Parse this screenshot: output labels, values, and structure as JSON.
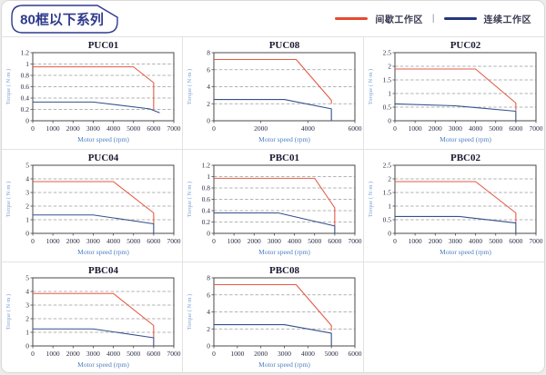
{
  "page": {
    "title": "80框以下系列"
  },
  "legend": {
    "separator": "|",
    "items": [
      {
        "label": "间歇工作区",
        "color": "#e54a31"
      },
      {
        "label": "连续工作区",
        "color": "#24387f"
      }
    ]
  },
  "colors": {
    "intermittent_line": "#e55a44",
    "continuous_line": "#35508c",
    "axis": "#4a4a4a",
    "grid": "#9a9a9a",
    "tick_text": "#2b2b45",
    "xlabel_text": "#4d7fc0",
    "ylabel_text": "#7ba0d4",
    "chart_title": "#1b1b32",
    "header_accent": "#2d3a8c"
  },
  "chart_data": [
    {
      "type": "line",
      "title": "PUC01",
      "xlabel": "Motor speed (rpm)",
      "ylabel": "Torque ( N·m )",
      "xlim": [
        0,
        7000
      ],
      "ylim": [
        0,
        1.2
      ],
      "xticks": [
        0,
        1000,
        2000,
        3000,
        4000,
        5000,
        6000,
        7000
      ],
      "yticks": [
        0,
        0.2,
        0.4,
        0.6,
        0.8,
        1,
        1.2
      ],
      "grid": "dashed-horizontal",
      "legend_position": "none",
      "series": [
        {
          "name": "间歇工作区",
          "color": "#e55a44",
          "points": [
            [
              0,
              0.95
            ],
            [
              5000,
              0.95
            ],
            [
              6000,
              0.67
            ],
            [
              6000,
              0.2
            ]
          ]
        },
        {
          "name": "连续工作区",
          "color": "#35508c",
          "points": [
            [
              0,
              0.33
            ],
            [
              3000,
              0.33
            ],
            [
              5800,
              0.21
            ],
            [
              6300,
              0.14
            ]
          ]
        }
      ]
    },
    {
      "type": "line",
      "title": "PUC08",
      "xlabel": "Motor speed (rpm)",
      "ylabel": "Torque ( N·m )",
      "xlim": [
        0,
        6000
      ],
      "ylim": [
        0,
        8
      ],
      "xticks": [
        0,
        2000,
        4000,
        6000
      ],
      "yticks": [
        0,
        2,
        4,
        6,
        8
      ],
      "grid": "dashed-horizontal",
      "legend_position": "none",
      "series": [
        {
          "name": "间歇工作区",
          "color": "#e55a44",
          "points": [
            [
              0,
              7.2
            ],
            [
              3500,
              7.2
            ],
            [
              5000,
              2.4
            ],
            [
              5000,
              2.0
            ]
          ]
        },
        {
          "name": "连续工作区",
          "color": "#35508c",
          "points": [
            [
              0,
              2.5
            ],
            [
              3000,
              2.5
            ],
            [
              5000,
              1.4
            ],
            [
              5000,
              0
            ]
          ]
        }
      ]
    },
    {
      "type": "line",
      "title": "PUC02",
      "xlabel": "Motor speed (rpm)",
      "ylabel": "Torque ( N·m )",
      "xlim": [
        0,
        7000
      ],
      "ylim": [
        0,
        2.5
      ],
      "xticks": [
        0,
        1000,
        2000,
        3000,
        4000,
        5000,
        6000,
        7000
      ],
      "yticks": [
        0,
        0.5,
        1,
        1.5,
        2,
        2.5
      ],
      "grid": "dashed-horizontal",
      "legend_position": "none",
      "series": [
        {
          "name": "间歇工作区",
          "color": "#e55a44",
          "points": [
            [
              0,
              1.9
            ],
            [
              4000,
              1.9
            ],
            [
              6000,
              0.65
            ],
            [
              6000,
              0.38
            ]
          ]
        },
        {
          "name": "连续工作区",
          "color": "#35508c",
          "points": [
            [
              0,
              0.62
            ],
            [
              3000,
              0.55
            ],
            [
              6000,
              0.35
            ],
            [
              6000,
              0
            ]
          ]
        }
      ]
    },
    {
      "type": "line",
      "title": "PUC04",
      "xlabel": "Motor speed (rpm)",
      "ylabel": "Torque ( N·m )",
      "xlim": [
        0,
        7000
      ],
      "ylim": [
        0,
        5
      ],
      "xticks": [
        0,
        1000,
        2000,
        3000,
        4000,
        5000,
        6000,
        7000
      ],
      "yticks": [
        0,
        1,
        2,
        3,
        4,
        5
      ],
      "grid": "dashed-horizontal",
      "legend_position": "none",
      "series": [
        {
          "name": "间歇工作区",
          "color": "#e55a44",
          "points": [
            [
              0,
              3.8
            ],
            [
              4000,
              3.8
            ],
            [
              6000,
              1.5
            ],
            [
              6000,
              0.7
            ]
          ]
        },
        {
          "name": "连续工作区",
          "color": "#35508c",
          "points": [
            [
              0,
              1.35
            ],
            [
              3000,
              1.35
            ],
            [
              6000,
              0.7
            ],
            [
              6000,
              0
            ]
          ]
        }
      ]
    },
    {
      "type": "line",
      "title": "PBC01",
      "xlabel": "Motor speed (rpm)",
      "ylabel": "Torque ( N·m )",
      "xlim": [
        0,
        7000
      ],
      "ylim": [
        0,
        1.2
      ],
      "xticks": [
        0,
        1000,
        2000,
        3000,
        4000,
        5000,
        6000,
        7000
      ],
      "yticks": [
        0,
        0.2,
        0.4,
        0.6,
        0.8,
        1,
        1.2
      ],
      "grid": "dashed-horizontal",
      "legend_position": "none",
      "series": [
        {
          "name": "间歇工作区",
          "color": "#e55a44",
          "points": [
            [
              0,
              0.97
            ],
            [
              5000,
              0.97
            ],
            [
              6000,
              0.45
            ],
            [
              6000,
              0.13
            ]
          ]
        },
        {
          "name": "连续工作区",
          "color": "#35508c",
          "points": [
            [
              0,
              0.36
            ],
            [
              3200,
              0.36
            ],
            [
              6000,
              0.13
            ],
            [
              6000,
              0
            ]
          ]
        }
      ]
    },
    {
      "type": "line",
      "title": "PBC02",
      "xlabel": "Motor speed (rpm)",
      "ylabel": "Torque ( N·m )",
      "xlim": [
        0,
        7000
      ],
      "ylim": [
        0,
        2.5
      ],
      "xticks": [
        0,
        1000,
        2000,
        3000,
        4000,
        5000,
        6000,
        7000
      ],
      "yticks": [
        0,
        0.5,
        1,
        1.5,
        2,
        2.5
      ],
      "grid": "dashed-horizontal",
      "legend_position": "none",
      "series": [
        {
          "name": "间歇工作区",
          "color": "#e55a44",
          "points": [
            [
              0,
              1.9
            ],
            [
              4000,
              1.9
            ],
            [
              6000,
              0.75
            ],
            [
              6000,
              0.4
            ]
          ]
        },
        {
          "name": "连续工作区",
          "color": "#35508c",
          "points": [
            [
              0,
              0.62
            ],
            [
              3200,
              0.62
            ],
            [
              6000,
              0.38
            ],
            [
              6000,
              0
            ]
          ]
        }
      ]
    },
    {
      "type": "line",
      "title": "PBC04",
      "xlabel": "Motor speed (rpm)",
      "ylabel": "Torque ( N·m )",
      "xlim": [
        0,
        7000
      ],
      "ylim": [
        0,
        5
      ],
      "xticks": [
        0,
        1000,
        2000,
        3000,
        4000,
        5000,
        6000,
        7000
      ],
      "yticks": [
        0,
        1,
        2,
        3,
        4,
        5
      ],
      "grid": "dashed-horizontal",
      "legend_position": "none",
      "series": [
        {
          "name": "间歇工作区",
          "color": "#e55a44",
          "points": [
            [
              0,
              3.85
            ],
            [
              4000,
              3.85
            ],
            [
              6000,
              1.5
            ],
            [
              6000,
              0.6
            ]
          ]
        },
        {
          "name": "连续工作区",
          "color": "#35508c",
          "points": [
            [
              0,
              1.25
            ],
            [
              3000,
              1.25
            ],
            [
              6000,
              0.6
            ],
            [
              6000,
              0
            ]
          ]
        }
      ]
    },
    {
      "type": "line",
      "title": "PBC08",
      "xlabel": "Motor speed (rpm)",
      "ylabel": "Torque ( N·m )",
      "xlim": [
        0,
        6000
      ],
      "ylim": [
        0,
        8
      ],
      "xticks": [
        0,
        1000,
        2000,
        3000,
        4000,
        5000,
        6000
      ],
      "yticks": [
        0,
        2,
        4,
        6,
        8
      ],
      "grid": "dashed-horizontal",
      "legend_position": "none",
      "series": [
        {
          "name": "间歇工作区",
          "color": "#e55a44",
          "points": [
            [
              0,
              7.2
            ],
            [
              3500,
              7.2
            ],
            [
              5000,
              2.4
            ],
            [
              5000,
              1.8
            ]
          ]
        },
        {
          "name": "连续工作区",
          "color": "#35508c",
          "points": [
            [
              0,
              2.5
            ],
            [
              3000,
              2.5
            ],
            [
              5000,
              1.5
            ],
            [
              5000,
              0
            ]
          ]
        }
      ]
    }
  ]
}
